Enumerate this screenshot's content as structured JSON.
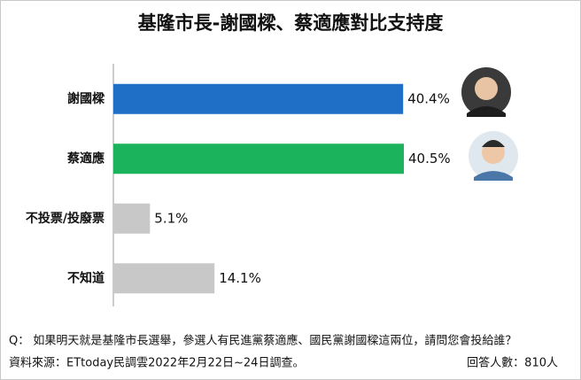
{
  "chart_data": {
    "type": "bar",
    "orientation": "horizontal",
    "title": "基隆市長-謝國樑、蔡適應對比支持度",
    "categories": [
      "謝國樑",
      "蔡適應",
      "不投票/投廢票",
      "不知道"
    ],
    "values": [
      40.4,
      40.5,
      5.1,
      14.1
    ],
    "value_labels": [
      "40.4%",
      "40.5%",
      "5.1%",
      "14.1%"
    ],
    "colors": [
      "#1f6fc6",
      "#1bb35b",
      "#c8c8c8",
      "#c8c8c8"
    ],
    "notes": [
      "Q： 如果明天就是基隆市長選舉，參選人有民進黨蔡適應、國民黨謝國樑這兩位，請問您會投給誰？",
      "資料來源：ETtoday民調雲2022年2月22日~24日調查。",
      "回答人數：810人"
    ]
  }
}
